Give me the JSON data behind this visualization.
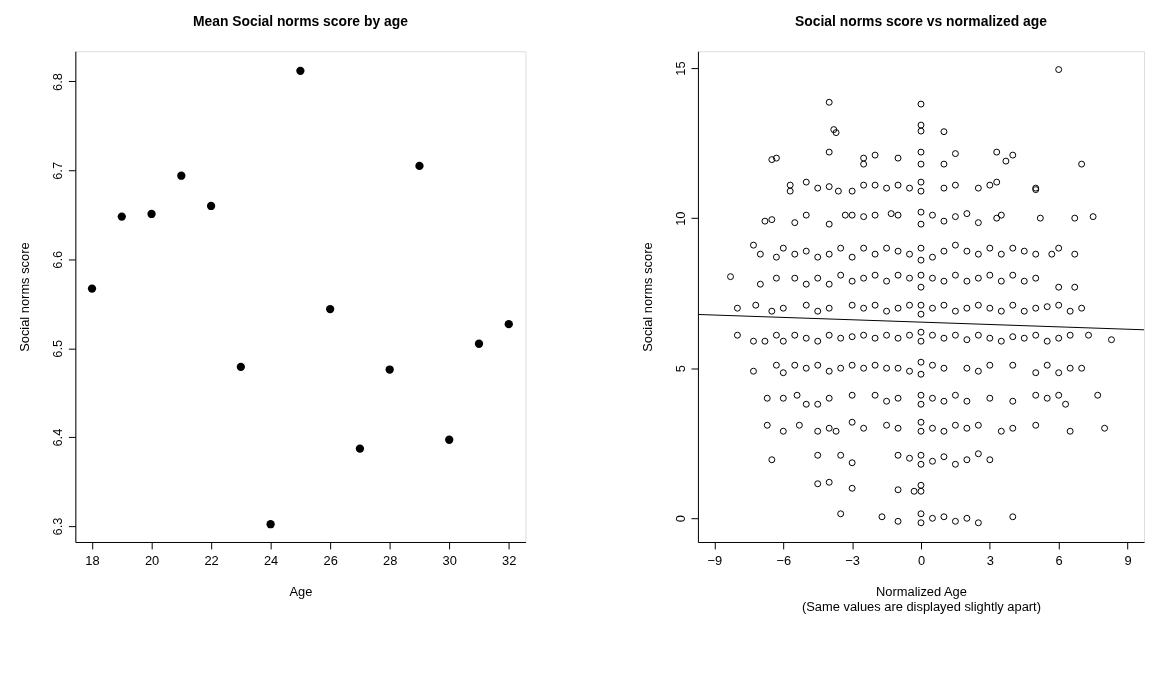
{
  "chart_data": [
    {
      "type": "scatter",
      "title": "Mean Social norms score by age",
      "xlabel": "Age",
      "ylabel": "Social norms score",
      "marker": "circle",
      "grid": false,
      "legend": false,
      "xlim": [
        17.44,
        32.56
      ],
      "xticks": [
        18,
        20,
        22,
        24,
        26,
        28,
        30,
        32
      ],
      "ylim": [
        6.282,
        6.834
      ],
      "yticks": [
        6.3,
        6.4,
        6.5,
        6.6,
        6.7,
        6.8
      ],
      "series": [
        {
          "color": "#000000",
          "x": [
            18,
            19,
            20,
            21,
            22,
            23,
            24,
            25,
            26,
            27,
            28,
            29,
            30,
            31,
            32
          ],
          "values": [
            6.567,
            6.648,
            6.651,
            6.694,
            6.66,
            6.479,
            6.302,
            6.812,
            6.544,
            6.387,
            6.476,
            6.705,
            6.397,
            6.505,
            6.527
          ]
        }
      ]
    },
    {
      "type": "scatter",
      "title": "Social norms score vs normalized age",
      "xlabel": "Normalized Age\n(Same values are displayed slightly apart)",
      "ylabel": "Social norms score",
      "grid": false,
      "legend": false,
      "xlim": [
        -9.72,
        9.72
      ],
      "xticks": [
        {
          "value": -9,
          "label": "−9"
        },
        {
          "value": -6,
          "label": "−6"
        },
        {
          "value": -3,
          "label": "−3"
        },
        0,
        3,
        6,
        9
      ],
      "ylim": [
        -0.79,
        15.56
      ],
      "yticks": [
        0,
        5,
        10,
        15
      ],
      "series": [
        {
          "color": "#000000",
          "marker": "circle",
          "x": [
            6,
            -4,
            0,
            -3.8,
            -3.7,
            0,
            0,
            1,
            -6.5,
            -6.3,
            -4,
            -2.5,
            -2.5,
            -2,
            -1,
            0,
            0,
            1,
            1.5,
            3.3,
            3.7,
            4,
            7,
            -5.7,
            -5.7,
            -5,
            -4.5,
            -4,
            -3.6,
            -3,
            -2.5,
            -2,
            -1.5,
            -1,
            -0.5,
            0,
            0,
            1,
            1.5,
            2.5,
            3,
            3.3,
            5,
            5,
            -6.8,
            -6.5,
            -5.5,
            -5,
            -4,
            -3.3,
            -3,
            -2.5,
            -2,
            -1.3,
            -1,
            0,
            0,
            0.5,
            1,
            1.5,
            2,
            2.5,
            3.3,
            3.5,
            5.2,
            6.7,
            7.5,
            -7.3,
            -7,
            -6.3,
            -6,
            -5.5,
            -5,
            -4.5,
            -4,
            -3.5,
            -3,
            -2.5,
            -2,
            -1.5,
            -1,
            -0.5,
            0,
            0,
            0.5,
            1,
            1.5,
            2,
            2.5,
            3,
            3.5,
            4,
            4.5,
            5,
            5.7,
            6,
            6.7,
            -8.3,
            -7,
            -6.3,
            -5.5,
            -5,
            -4.5,
            -4,
            -3.5,
            -3,
            -2.5,
            -2,
            -1.5,
            -1,
            -0.5,
            0,
            0,
            0.5,
            1,
            1.5,
            2,
            2.5,
            3,
            3.5,
            4,
            4.5,
            5,
            6,
            6.7,
            -8,
            -7.2,
            -6.5,
            -6,
            -5,
            -4.5,
            -4,
            -3,
            -2.5,
            -2,
            -1.5,
            -1,
            -0.5,
            0,
            0,
            0.5,
            1,
            1.5,
            2,
            2.5,
            3,
            3.5,
            4,
            4.5,
            5,
            5.5,
            6,
            6.5,
            7,
            -8,
            -7.3,
            -6.8,
            -6.3,
            -6,
            -5.5,
            -5,
            -4.5,
            -4,
            -3.5,
            -3,
            -2.5,
            -2,
            -1.5,
            -1,
            -0.5,
            0,
            0,
            0.5,
            1,
            1.5,
            2,
            2.5,
            3,
            3.5,
            4,
            4.5,
            5,
            5.5,
            6,
            6.5,
            7.3,
            8.3,
            -7.3,
            -6.3,
            -6,
            -5.5,
            -5,
            -4.5,
            -4,
            -3.5,
            -3,
            -2.5,
            -2,
            -1.5,
            -1,
            -0.5,
            0,
            0,
            0.5,
            1,
            2,
            2.5,
            3,
            4,
            5,
            5.5,
            6,
            6.5,
            7,
            -6.7,
            -6,
            -5.4,
            -5,
            -4.5,
            -4,
            -3,
            -2,
            -1.5,
            -1,
            0,
            0,
            0.5,
            1,
            1.5,
            2,
            3,
            4,
            5,
            5.5,
            6,
            6.3,
            7.7,
            -6.7,
            -6,
            -5.3,
            -4.5,
            -4,
            -3.7,
            -3,
            -2.5,
            -1.5,
            -1,
            0,
            0,
            0.5,
            1,
            1.5,
            2,
            2.5,
            3.5,
            4,
            5,
            6.5,
            8,
            -6.5,
            -4.5,
            -3.5,
            -3,
            -1,
            -0.5,
            0,
            0,
            0.5,
            1,
            1.5,
            2,
            2.5,
            3,
            -4.5,
            -4,
            -3,
            -1,
            -0.3,
            0,
            0,
            -3.5,
            -1.7,
            -1,
            0,
            0,
            0.5,
            1,
            1.5,
            2,
            2.5,
            4
          ],
          "values": [
            14.95,
            13.86,
            13.8,
            12.95,
            12.85,
            13.1,
            12.9,
            12.88,
            11.95,
            12.0,
            12.2,
            12.0,
            11.8,
            12.1,
            12.0,
            12.2,
            11.8,
            11.8,
            12.15,
            12.2,
            11.9,
            12.1,
            11.8,
            11.1,
            10.9,
            11.2,
            11.0,
            11.05,
            10.9,
            10.9,
            11.1,
            11.1,
            11.0,
            11.1,
            11.0,
            11.2,
            10.9,
            11.0,
            11.1,
            11.0,
            11.1,
            11.2,
            10.95,
            11.0,
            9.9,
            9.95,
            9.85,
            10.1,
            9.8,
            10.1,
            10.1,
            10.05,
            10.1,
            10.15,
            10.1,
            10.2,
            9.8,
            10.1,
            9.9,
            10.05,
            10.15,
            9.85,
            10.0,
            10.1,
            10.0,
            10.0,
            10.05,
            9.1,
            8.8,
            8.7,
            9.0,
            8.8,
            8.9,
            8.7,
            8.8,
            9.0,
            8.7,
            9.0,
            8.8,
            9.0,
            8.9,
            8.8,
            9.0,
            8.6,
            8.7,
            8.9,
            9.1,
            8.9,
            8.8,
            9.0,
            8.8,
            9.0,
            8.9,
            8.8,
            8.8,
            9.0,
            8.8,
            8.05,
            7.8,
            8.0,
            8.0,
            7.8,
            8.0,
            7.8,
            8.1,
            7.9,
            8.0,
            8.1,
            7.9,
            8.1,
            8.0,
            8.1,
            7.7,
            8.0,
            7.9,
            8.1,
            7.9,
            8.0,
            8.1,
            7.9,
            8.1,
            7.9,
            8.0,
            7.7,
            7.7,
            7.0,
            7.1,
            6.9,
            7.0,
            7.1,
            6.9,
            7.0,
            7.1,
            7.0,
            7.1,
            6.9,
            7.0,
            7.1,
            7.1,
            6.8,
            7.0,
            7.1,
            6.9,
            7.0,
            7.1,
            7.0,
            6.9,
            7.1,
            6.9,
            7.0,
            7.05,
            7.1,
            6.9,
            7.0,
            6.1,
            5.9,
            5.9,
            6.1,
            5.9,
            6.1,
            6.0,
            5.9,
            6.1,
            6.0,
            6.05,
            6.1,
            6.0,
            6.1,
            6.0,
            6.1,
            6.2,
            5.9,
            6.1,
            6.0,
            6.1,
            5.95,
            6.1,
            6.0,
            5.9,
            6.05,
            6.0,
            6.1,
            5.9,
            6.0,
            6.1,
            6.1,
            5.95,
            4.9,
            5.1,
            4.85,
            5.1,
            5.0,
            5.1,
            4.9,
            5.0,
            5.1,
            5.0,
            5.1,
            5.0,
            5.0,
            4.9,
            5.2,
            4.8,
            5.1,
            5.0,
            5.0,
            4.9,
            5.1,
            5.1,
            4.85,
            5.1,
            4.85,
            5.0,
            5.0,
            4.0,
            4.0,
            4.1,
            3.8,
            3.8,
            4.0,
            4.1,
            4.1,
            3.9,
            4.0,
            4.1,
            3.8,
            4.0,
            3.9,
            4.1,
            3.9,
            4.0,
            3.9,
            4.1,
            4.0,
            4.1,
            3.8,
            4.1,
            3.1,
            2.9,
            3.1,
            2.9,
            3.0,
            2.9,
            3.2,
            3.0,
            3.1,
            3.0,
            3.2,
            2.9,
            3.0,
            2.9,
            3.1,
            3.0,
            3.1,
            2.9,
            3.0,
            3.1,
            2.9,
            3.0,
            1.95,
            2.1,
            2.1,
            1.85,
            2.1,
            2.0,
            2.1,
            1.8,
            1.9,
            2.05,
            1.8,
            1.95,
            2.15,
            1.95,
            1.15,
            1.2,
            1.0,
            0.95,
            0.9,
            1.1,
            0.9,
            0.15,
            0.05,
            -0.1,
            0.15,
            -0.15,
            0.0,
            0.05,
            -0.1,
            0.0,
            -0.15,
            0.05
          ]
        },
        {
          "type": "line",
          "marker": "none",
          "color": "#000000",
          "x": [
            -9.72,
            9.72
          ],
          "values": [
            6.79,
            6.28
          ]
        }
      ]
    }
  ]
}
